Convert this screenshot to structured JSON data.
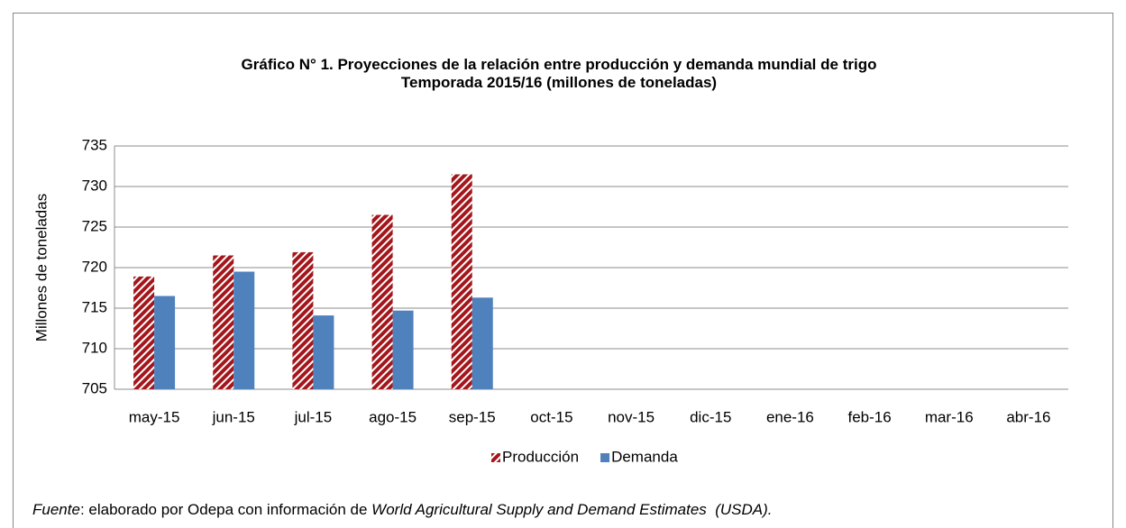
{
  "chart_data": {
    "type": "bar",
    "title": "Gráfico N° 1. Proyecciones de la relación entre producción y demanda mundial de trigo",
    "subtitle": "Temporada 2015/16 (millones de toneladas)",
    "y_label": "Millones de toneladas",
    "categories": [
      "may-15",
      "jun-15",
      "jul-15",
      "ago-15",
      "sep-15",
      "oct-15",
      "nov-15",
      "dic-15",
      "ene-16",
      "feb-16",
      "mar-16",
      "abr-16"
    ],
    "series": [
      {
        "name": "Producción",
        "color": "#a3171c",
        "pattern": "hatch",
        "values": [
          718.9,
          721.5,
          721.9,
          726.5,
          731.5,
          null,
          null,
          null,
          null,
          null,
          null,
          null
        ]
      },
      {
        "name": "Demanda",
        "color": "#4f81bd",
        "values": [
          716.5,
          719.5,
          714.1,
          714.7,
          716.3,
          null,
          null,
          null,
          null,
          null,
          null,
          null
        ]
      }
    ],
    "ylim": [
      705,
      735
    ],
    "yticks": [
      705,
      710,
      715,
      720,
      725,
      730,
      735
    ],
    "grid": true,
    "legend": "bottom",
    "footer": [
      "Fuente",
      ": elaborado por Odepa con información de ",
      "World Agricultural Supply and Demand Estimates  (USDA)."
    ]
  }
}
